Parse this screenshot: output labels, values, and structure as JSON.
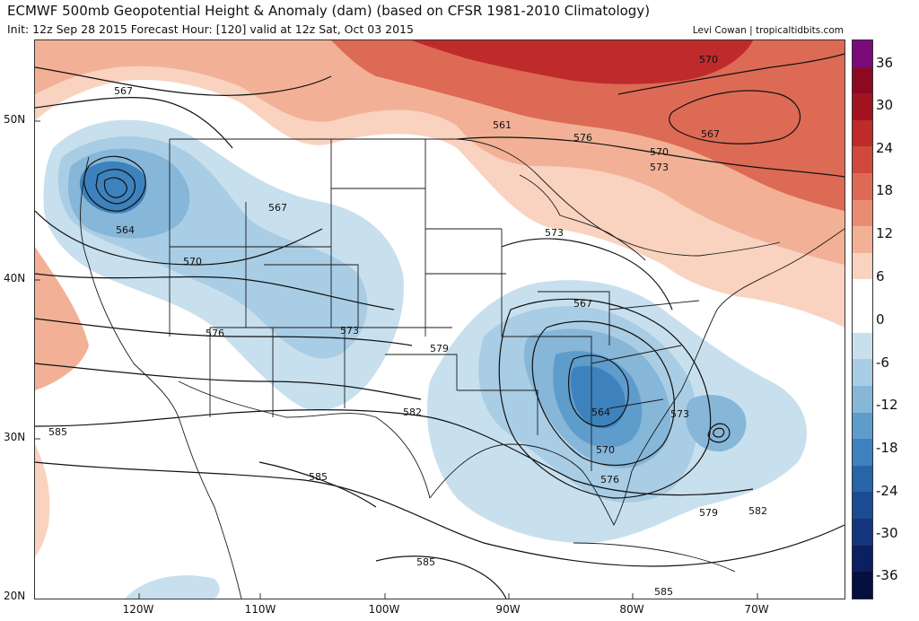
{
  "header": {
    "title": "ECMWF 500mb Geopotential Height & Anomaly (dam) (based on CFSR 1981-2010 Climatology)",
    "subtitle": "Init: 12z Sep 28 2015   Forecast Hour: [120]   valid at 12z Sat, Oct 03 2015",
    "credit": "Levi Cowan | tropicaltidbits.com"
  },
  "axes": {
    "lat_labels": [
      "50N",
      "40N",
      "30N",
      "20N"
    ],
    "lon_labels": [
      "120W",
      "110W",
      "100W",
      "90W",
      "80W",
      "70W"
    ]
  },
  "contour_labels": [
    "561",
    "564",
    "567",
    "567",
    "570",
    "570",
    "573",
    "573",
    "576",
    "576",
    "579",
    "579",
    "582",
    "582",
    "585",
    "585",
    "585",
    "585",
    "564",
    "567",
    "570",
    "573",
    "576",
    "567",
    "570",
    "573"
  ],
  "colorbar": {
    "ticks": [
      "36",
      "30",
      "24",
      "18",
      "12",
      "6",
      "0",
      "-6",
      "-12",
      "-18",
      "-24",
      "-30",
      "-36"
    ],
    "colors": [
      "#7a0a7a",
      "#8b0a22",
      "#a3121f",
      "#bf2b2b",
      "#cf4a3c",
      "#dd6a55",
      "#e88d74",
      "#f2b196",
      "#f9d3c0",
      "#ffffff",
      "#ffffff",
      "#c8e0ee",
      "#a9cde4",
      "#86b6d8",
      "#5e9ccb",
      "#3d82bd",
      "#2765a8",
      "#1b4b93",
      "#12357c",
      "#0b2060",
      "#060f42"
    ]
  },
  "colors": {
    "strong_positive": "#b3202a",
    "positive": "#e88d74",
    "light_positive": "#f6c7b0",
    "light_negative": "#bcd9eb",
    "negative": "#86b6d8",
    "strong_negative": "#3d82bd",
    "contour": "#111111",
    "border": "#1a1a1a"
  }
}
